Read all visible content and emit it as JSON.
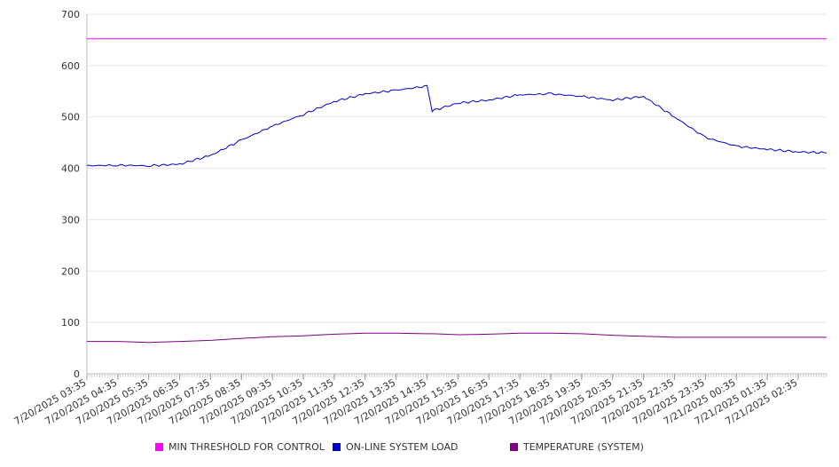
{
  "chart_data": {
    "type": "line",
    "title": "",
    "xlabel": "",
    "ylabel": "",
    "ylim": [
      0,
      700
    ],
    "y_ticks": [
      0,
      100,
      200,
      300,
      400,
      500,
      600,
      700
    ],
    "grid": true,
    "legend_position": "bottom",
    "x_tick_labels": [
      "7/20/2025 03:35",
      "7/20/2025 04:35",
      "7/20/2025 05:35",
      "7/20/2025 06:35",
      "7/20/2025 07:35",
      "7/20/2025 08:35",
      "7/20/2025 09:35",
      "7/20/2025 10:35",
      "7/20/2025 11:35",
      "7/20/2025 12:35",
      "7/20/2025 13:35",
      "7/20/2025 14:35",
      "7/20/2025 15:35",
      "7/20/2025 16:35",
      "7/20/2025 17:35",
      "7/20/2025 18:35",
      "7/20/2025 19:35",
      "7/20/2025 20:35",
      "7/20/2025 21:35",
      "7/20/2025 22:35",
      "7/20/2025 23:35",
      "7/21/2025 00:35",
      "7/21/2025 01:35",
      "7/21/2025 02:35"
    ],
    "x": [
      "7/20/2025 03:35",
      "7/20/2025 04:35",
      "7/20/2025 05:35",
      "7/20/2025 06:35",
      "7/20/2025 07:35",
      "7/20/2025 08:35",
      "7/20/2025 09:35",
      "7/20/2025 10:35",
      "7/20/2025 11:35",
      "7/20/2025 12:35",
      "7/20/2025 13:35",
      "7/20/2025 14:35",
      "7/20/2025 14:45",
      "7/20/2025 15:35",
      "7/20/2025 16:35",
      "7/20/2025 17:35",
      "7/20/2025 18:35",
      "7/20/2025 19:35",
      "7/20/2025 20:35",
      "7/20/2025 21:35",
      "7/20/2025 22:35",
      "7/20/2025 23:35",
      "7/21/2025 00:35",
      "7/21/2025 01:35",
      "7/21/2025 02:35",
      "7/21/2025 03:30"
    ],
    "series": [
      {
        "name": "MIN THRESHOLD FOR CONTROL",
        "color": "#ff00ff",
        "values": [
          652,
          652,
          652,
          652,
          652,
          652,
          652,
          652,
          652,
          652,
          652,
          652,
          652,
          652,
          652,
          652,
          652,
          652,
          652,
          652,
          652,
          652,
          652,
          652,
          652,
          652
        ]
      },
      {
        "name": "ON-LINE SYSTEM LOAD",
        "color": "#0000cc",
        "values": [
          405,
          406,
          405,
          408,
          425,
          455,
          482,
          505,
          530,
          545,
          552,
          560,
          512,
          527,
          533,
          543,
          545,
          540,
          533,
          540,
          500,
          460,
          443,
          437,
          432,
          430
        ]
      },
      {
        "name": "TEMPERATURE (SYSTEM)",
        "color": "#800080",
        "values": [
          63,
          63,
          61,
          63,
          65,
          69,
          72,
          74,
          77,
          79,
          79,
          78,
          78,
          76,
          77,
          79,
          79,
          78,
          75,
          73,
          71,
          71,
          71,
          71,
          71,
          71
        ]
      }
    ]
  }
}
